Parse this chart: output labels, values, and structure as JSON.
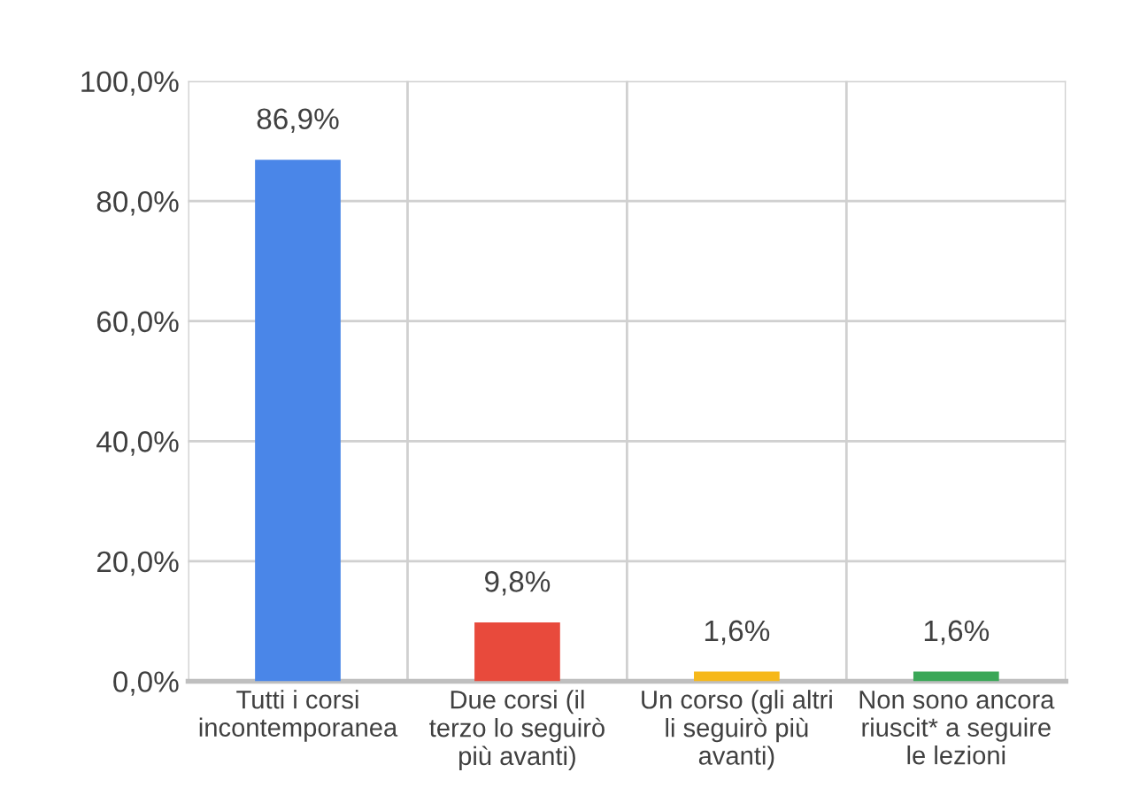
{
  "chart_data": {
    "type": "bar",
    "categories": [
      "Tutti i corsi\nincontemporanea",
      "Due corsi (il\nterzo lo seguirò\npiù avanti)",
      "Un corso (gli altri\nli seguirò più\navanti)",
      "Non sono ancora\nriuscit* a seguire\nle lezioni"
    ],
    "values": [
      86.9,
      9.8,
      1.6,
      1.6
    ],
    "colors": [
      "#4a86e8",
      "#e84a3c",
      "#f6b81a",
      "#3aa757"
    ],
    "value_labels": [
      "86,9%",
      "9,8%",
      "1,6%",
      "1,6%"
    ],
    "ylim": [
      0,
      100
    ],
    "yticks": [
      {
        "value": 0,
        "label": "0,0%"
      },
      {
        "value": 20,
        "label": "20,0%"
      },
      {
        "value": 40,
        "label": "40,0%"
      },
      {
        "value": 60,
        "label": "60,0%"
      },
      {
        "value": 80,
        "label": "80,0%"
      },
      {
        "value": 100,
        "label": "100,0%"
      }
    ],
    "grid": true
  }
}
